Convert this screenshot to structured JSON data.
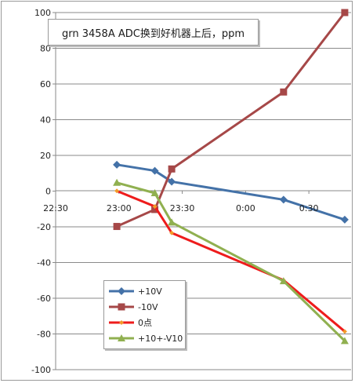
{
  "chart_data": {
    "type": "line",
    "title": "grn 3458A  ADC换到好机器上后，ppm",
    "xlabel": "",
    "ylabel": "",
    "ylim": [
      -100,
      100
    ],
    "yticks": [
      100,
      80,
      60,
      40,
      20,
      0,
      -20,
      -40,
      -60,
      -80,
      -100
    ],
    "xlim": [
      "22:30",
      "00:50"
    ],
    "xticks": [
      "22:30",
      "23:00",
      "23:30",
      "0:00",
      "0:30"
    ],
    "grid": "horizontal",
    "legend_position": "bottom-left",
    "series": [
      {
        "name": "+10V",
        "color": "#4472a8",
        "marker": "diamond",
        "points": [
          [
            "22:59",
            14.8
          ],
          [
            "23:17",
            11.4
          ],
          [
            "23:25",
            5.3
          ],
          [
            "0:18",
            -4.8
          ],
          [
            "0:47",
            -16.0
          ]
        ]
      },
      {
        "name": "-10V",
        "color": "#a64848",
        "marker": "square",
        "points": [
          [
            "22:59",
            -19.8
          ],
          [
            "23:17",
            -10.3
          ],
          [
            "23:25",
            12.4
          ],
          [
            "0:18",
            55.5
          ],
          [
            "0:47",
            100.0
          ]
        ]
      },
      {
        "name": "0点",
        "color": "#ee1c1c",
        "marker": "small-diamond",
        "points": [
          [
            "22:59",
            0.1
          ],
          [
            "23:17",
            -8.6
          ],
          [
            "23:25",
            -23.4
          ],
          [
            "0:18",
            -49.9
          ],
          [
            "0:47",
            -78.6
          ]
        ]
      },
      {
        "name": "+10+-V10",
        "color": "#90b050",
        "marker": "triangle",
        "points": [
          [
            "22:59",
            4.7
          ],
          [
            "23:17",
            -1.1
          ],
          [
            "23:25",
            -17.5
          ],
          [
            "0:18",
            -50.4
          ],
          [
            "0:47",
            -83.9
          ]
        ]
      }
    ]
  }
}
